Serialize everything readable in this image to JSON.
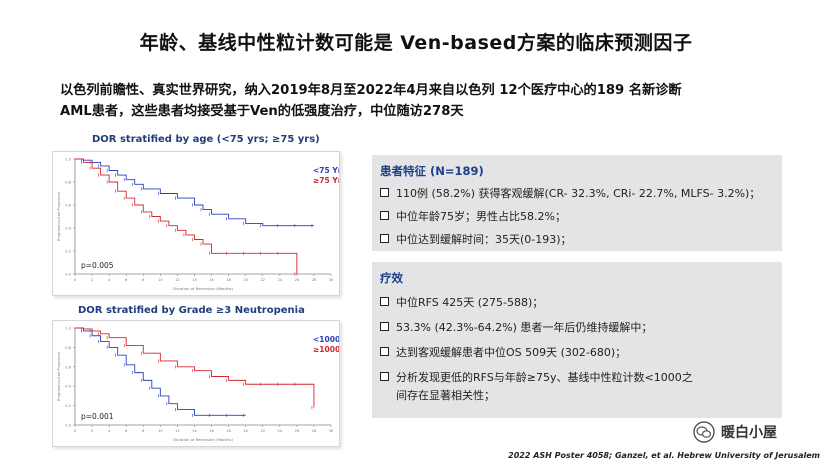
{
  "title": "年龄、基线中性粒计数可能是 Ven-based方案的临床预测因子",
  "intro": {
    "line1": "以色列前瞻性、真实世界研究，纳入2019年8月至2022年4月来自以色列 12个医疗中心的189 名新诊断",
    "line2": "AML患者，这些患者均接受基于Ven的低强度治疗，中位随访278天"
  },
  "charts": [
    {
      "title": "DOR stratified by age (<75 yrs; ≥75 yrs)",
      "legend": [
        {
          "label": "<75 Yrs",
          "color": "#2a3fbf"
        },
        {
          "label": "≥75 Yrs",
          "color": "#d2272c"
        }
      ],
      "pvalue": "p=0.005",
      "xlabel": "Duration of Remission (Months)",
      "ylabel": "Progression-free Proportion",
      "y_ticks": [
        "1.0",
        "0.8",
        "0.6",
        "0.4",
        "0.2",
        "0.0"
      ],
      "x_ticks": [
        "0",
        "2",
        "4",
        "6",
        "8",
        "10",
        "12",
        "14",
        "16",
        "18",
        "20",
        "22",
        "24",
        "26",
        "28",
        "30"
      ]
    },
    {
      "title": "DOR stratified by Grade ≥3 Neutropenia",
      "legend": [
        {
          "label": "<1000",
          "color": "#2a3fbf"
        },
        {
          "label": "≥1000",
          "color": "#d2272c"
        }
      ],
      "pvalue": "p=0.001",
      "xlabel": "Duration of Remission (Months)",
      "ylabel": "Progression-free Proportion",
      "y_ticks": [
        "1.0",
        "0.8",
        "0.6",
        "0.4",
        "0.2",
        "0.0"
      ],
      "x_ticks": [
        "0",
        "2",
        "4",
        "6",
        "8",
        "10",
        "12",
        "14",
        "16",
        "18",
        "20",
        "22",
        "24",
        "26",
        "28",
        "30"
      ]
    }
  ],
  "chart_data": [
    {
      "type": "line",
      "title": "DOR stratified by age (<75 yrs; ≥75 yrs)",
      "xlabel": "Duration of Remission (Months)",
      "ylabel": "Progression-free Proportion",
      "xlim": [
        0,
        30
      ],
      "ylim": [
        0,
        1
      ],
      "legend_position": "top-right",
      "series": [
        {
          "name": "<75 Yrs",
          "color": "#2a3fbf",
          "x": [
            0,
            1,
            2,
            3,
            4,
            5,
            6,
            7,
            8,
            10,
            12,
            14,
            15,
            16,
            18,
            20,
            22,
            24,
            26,
            28
          ],
          "y": [
            1.0,
            0.99,
            0.97,
            0.94,
            0.9,
            0.86,
            0.82,
            0.78,
            0.74,
            0.7,
            0.66,
            0.6,
            0.56,
            0.52,
            0.48,
            0.44,
            0.42,
            0.42,
            0.42,
            0.42
          ]
        },
        {
          "name": "≥75 Yrs",
          "color": "#d2272c",
          "x": [
            0,
            1,
            2,
            3,
            4,
            5,
            6,
            7,
            8,
            9,
            10,
            11,
            12,
            13,
            14,
            15,
            16,
            18,
            20,
            22,
            24,
            26
          ],
          "y": [
            1.0,
            0.97,
            0.92,
            0.86,
            0.8,
            0.72,
            0.66,
            0.6,
            0.54,
            0.5,
            0.46,
            0.42,
            0.38,
            0.34,
            0.3,
            0.26,
            0.18,
            0.18,
            0.18,
            0.18,
            0.18,
            0.0
          ]
        }
      ]
    },
    {
      "type": "line",
      "title": "DOR stratified by Grade ≥3 Neutropenia",
      "xlabel": "Duration of Remission (Months)",
      "ylabel": "Progression-free Proportion",
      "xlim": [
        0,
        30
      ],
      "ylim": [
        0,
        1
      ],
      "legend_position": "top-right",
      "series": [
        {
          "name": "<1000",
          "color": "#2a3fbf",
          "x": [
            0,
            1,
            2,
            3,
            4,
            5,
            6,
            7,
            8,
            9,
            10,
            11,
            12,
            14,
            16,
            18,
            20
          ],
          "y": [
            1.0,
            0.97,
            0.92,
            0.86,
            0.8,
            0.72,
            0.62,
            0.54,
            0.46,
            0.38,
            0.3,
            0.22,
            0.16,
            0.1,
            0.1,
            0.1,
            0.1
          ]
        },
        {
          "name": "≥1000",
          "color": "#d2272c",
          "x": [
            0,
            1,
            2,
            3,
            4,
            6,
            8,
            10,
            12,
            14,
            16,
            18,
            20,
            22,
            24,
            26,
            28
          ],
          "y": [
            1.0,
            0.99,
            0.97,
            0.94,
            0.9,
            0.82,
            0.74,
            0.66,
            0.6,
            0.56,
            0.5,
            0.46,
            0.42,
            0.42,
            0.42,
            0.42,
            0.18
          ]
        }
      ]
    }
  ],
  "panel1": {
    "heading": "患者特征 (N=189)",
    "items": [
      "110例 (58.2%) 获得客观缓解(CR- 32.3%, CRi- 22.7%, MLFS- 3.2%)；",
      "中位年龄75岁；男性占比58.2%；",
      "中位达到缓解时间：35天(0-193)；"
    ]
  },
  "panel2": {
    "heading": "疗效",
    "items": [
      "中位RFS  425天 (275-588)；",
      "53.3% (42.3%-64.2%) 患者一年后仍维持缓解中；",
      "达到客观缓解患者中位OS 509天 (302-680)；",
      "分析发现更低的RFS与年龄≥75y、基线中性粒计数<1000之间存在显著相关性；"
    ]
  },
  "footnote": "2022 ASH Poster 4058; Ganzel, et al. Hebrew University of Jerusalem",
  "watermark": {
    "text": "暖白小屋",
    "icon": "wechat-icon"
  }
}
